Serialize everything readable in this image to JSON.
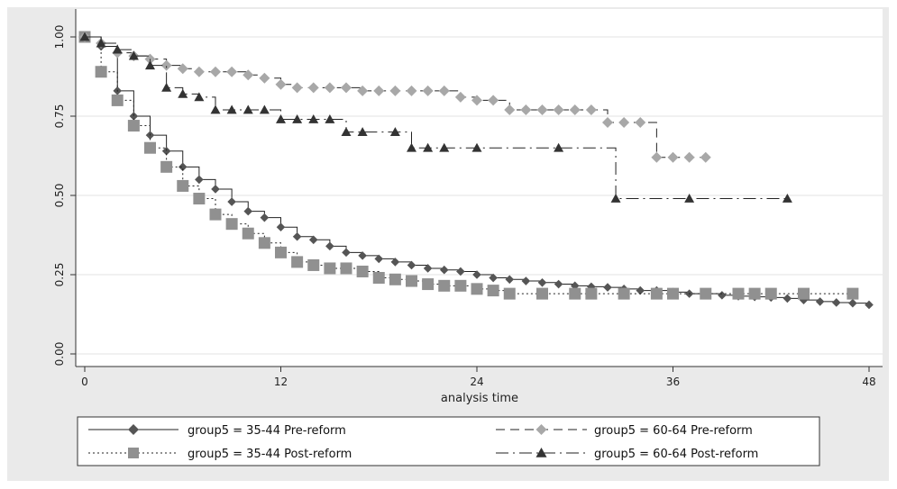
{
  "chart_data": {
    "type": "line",
    "title": "",
    "xlabel": "analysis time",
    "ylabel": "",
    "xlim": [
      0,
      48
    ],
    "ylim": [
      0,
      1
    ],
    "x_ticks": [
      0,
      12,
      24,
      36,
      48
    ],
    "y_ticks": [
      0.0,
      0.25,
      0.5,
      0.75,
      1.0
    ],
    "x_tick_labels": [
      "0",
      "12",
      "24",
      "36",
      "48"
    ],
    "y_tick_labels": [
      "0.00",
      "0.25",
      "0.50",
      "0.75",
      "1.00"
    ],
    "grid": "horizontal",
    "legend_position": "bottom",
    "series": [
      {
        "name": "group5 = 35-44 Pre-reform",
        "line_style": "solid",
        "marker": "diamond",
        "color": "#555555",
        "points": [
          [
            0,
            1.0
          ],
          [
            1,
            0.97
          ],
          [
            2,
            0.83
          ],
          [
            3,
            0.75
          ],
          [
            4,
            0.69
          ],
          [
            5,
            0.64
          ],
          [
            6,
            0.59
          ],
          [
            7,
            0.55
          ],
          [
            8,
            0.52
          ],
          [
            9,
            0.48
          ],
          [
            10,
            0.45
          ],
          [
            11,
            0.43
          ],
          [
            12,
            0.4
          ],
          [
            13,
            0.37
          ],
          [
            14,
            0.36
          ],
          [
            15,
            0.34
          ],
          [
            16,
            0.32
          ],
          [
            17,
            0.31
          ],
          [
            18,
            0.3
          ],
          [
            19,
            0.29
          ],
          [
            20,
            0.28
          ],
          [
            21,
            0.27
          ],
          [
            22,
            0.265
          ],
          [
            23,
            0.26
          ],
          [
            24,
            0.25
          ],
          [
            25,
            0.24
          ],
          [
            26,
            0.235
          ],
          [
            27,
            0.23
          ],
          [
            28,
            0.225
          ],
          [
            29,
            0.22
          ],
          [
            30,
            0.215
          ],
          [
            31,
            0.212
          ],
          [
            32,
            0.21
          ],
          [
            33,
            0.205
          ],
          [
            34,
            0.2
          ],
          [
            35,
            0.2
          ],
          [
            36,
            0.195
          ],
          [
            37,
            0.19
          ],
          [
            38,
            0.19
          ],
          [
            39,
            0.185
          ],
          [
            40,
            0.182
          ],
          [
            41,
            0.18
          ],
          [
            42,
            0.178
          ],
          [
            43,
            0.175
          ],
          [
            44,
            0.17
          ],
          [
            45,
            0.165
          ],
          [
            46,
            0.162
          ],
          [
            47,
            0.16
          ],
          [
            48,
            0.155
          ]
        ]
      },
      {
        "name": "group5 = 35-44 Post-reform",
        "line_style": "dotted",
        "marker": "square",
        "color": "#909090",
        "points": [
          [
            0,
            1.0
          ],
          [
            1,
            0.89
          ],
          [
            2,
            0.8
          ],
          [
            3,
            0.72
          ],
          [
            4,
            0.65
          ],
          [
            5,
            0.59
          ],
          [
            6,
            0.53
          ],
          [
            7,
            0.49
          ],
          [
            8,
            0.44
          ],
          [
            9,
            0.41
          ],
          [
            10,
            0.38
          ],
          [
            11,
            0.35
          ],
          [
            12,
            0.32
          ],
          [
            13,
            0.29
          ],
          [
            14,
            0.28
          ],
          [
            15,
            0.27
          ],
          [
            16,
            0.27
          ],
          [
            17,
            0.26
          ],
          [
            18,
            0.24
          ],
          [
            19,
            0.235
          ],
          [
            20,
            0.23
          ],
          [
            21,
            0.22
          ],
          [
            22,
            0.215
          ],
          [
            23,
            0.215
          ],
          [
            24,
            0.205
          ],
          [
            25,
            0.2
          ],
          [
            26,
            0.19
          ],
          [
            28,
            0.19
          ],
          [
            30,
            0.19
          ],
          [
            31,
            0.19
          ],
          [
            33,
            0.19
          ],
          [
            35,
            0.19
          ],
          [
            36,
            0.19
          ],
          [
            38,
            0.19
          ],
          [
            40,
            0.19
          ],
          [
            41,
            0.19
          ],
          [
            42,
            0.19
          ],
          [
            44,
            0.19
          ],
          [
            47,
            0.19
          ]
        ]
      },
      {
        "name": "group5 = 60-64 Pre-reform",
        "line_style": "dash",
        "marker": "diamond",
        "color": "#a8a8a8",
        "points": [
          [
            0,
            1.0
          ],
          [
            1,
            0.98
          ],
          [
            2,
            0.95
          ],
          [
            3,
            0.94
          ],
          [
            4,
            0.93
          ],
          [
            5,
            0.91
          ],
          [
            6,
            0.9
          ],
          [
            7,
            0.89
          ],
          [
            8,
            0.89
          ],
          [
            9,
            0.89
          ],
          [
            10,
            0.88
          ],
          [
            11,
            0.87
          ],
          [
            12,
            0.85
          ],
          [
            13,
            0.84
          ],
          [
            14,
            0.84
          ],
          [
            15,
            0.84
          ],
          [
            16,
            0.84
          ],
          [
            17,
            0.83
          ],
          [
            18,
            0.83
          ],
          [
            19,
            0.83
          ],
          [
            20,
            0.83
          ],
          [
            21,
            0.83
          ],
          [
            22,
            0.83
          ],
          [
            23,
            0.81
          ],
          [
            24,
            0.8
          ],
          [
            25,
            0.8
          ],
          [
            26,
            0.77
          ],
          [
            27,
            0.77
          ],
          [
            28,
            0.77
          ],
          [
            29,
            0.77
          ],
          [
            30,
            0.77
          ],
          [
            31,
            0.77
          ],
          [
            32,
            0.73
          ],
          [
            33,
            0.73
          ],
          [
            34,
            0.73
          ],
          [
            35,
            0.62
          ],
          [
            36,
            0.62
          ],
          [
            37,
            0.62
          ],
          [
            38,
            0.62
          ]
        ]
      },
      {
        "name": "group5 = 60-64 Post-reform",
        "line_style": "dashdot",
        "marker": "triangle",
        "color": "#333333",
        "points": [
          [
            0,
            1.0
          ],
          [
            1,
            0.98
          ],
          [
            2,
            0.96
          ],
          [
            3,
            0.94
          ],
          [
            4,
            0.91
          ],
          [
            5,
            0.84
          ],
          [
            6,
            0.82
          ],
          [
            7,
            0.81
          ],
          [
            8,
            0.77
          ],
          [
            9,
            0.77
          ],
          [
            10,
            0.77
          ],
          [
            11,
            0.77
          ],
          [
            12,
            0.74
          ],
          [
            13,
            0.74
          ],
          [
            14,
            0.74
          ],
          [
            15,
            0.74
          ],
          [
            16,
            0.7
          ],
          [
            17,
            0.7
          ],
          [
            19,
            0.7
          ],
          [
            20,
            0.65
          ],
          [
            21,
            0.65
          ],
          [
            22,
            0.65
          ],
          [
            24,
            0.65
          ],
          [
            29,
            0.65
          ],
          [
            32.5,
            0.49
          ],
          [
            37,
            0.49
          ],
          [
            43,
            0.49
          ]
        ]
      }
    ]
  }
}
